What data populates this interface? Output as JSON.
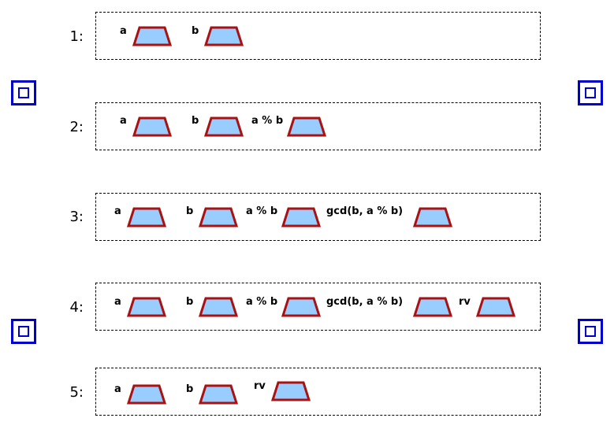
{
  "colors": {
    "slot_fill": "#99ccff",
    "slot_stroke": "#aa1111",
    "corner_stroke": "#0000cc",
    "frame_border": "#000000"
  },
  "icons": {
    "slot": "trapezoid-slot-icon",
    "corner": "nested-square-icon"
  },
  "rows": [
    {
      "num": "1:",
      "vars": [
        "a",
        "b"
      ]
    },
    {
      "num": "2:",
      "vars": [
        "a",
        "b",
        "a % b"
      ]
    },
    {
      "num": "3:",
      "vars": [
        "a",
        "b",
        "a % b",
        "gcd(b, a % b)"
      ]
    },
    {
      "num": "4:",
      "vars": [
        "a",
        "b",
        "a % b",
        "gcd(b, a % b)",
        "rv"
      ]
    },
    {
      "num": "5:",
      "vars": [
        "a",
        "b",
        "rv"
      ]
    }
  ]
}
